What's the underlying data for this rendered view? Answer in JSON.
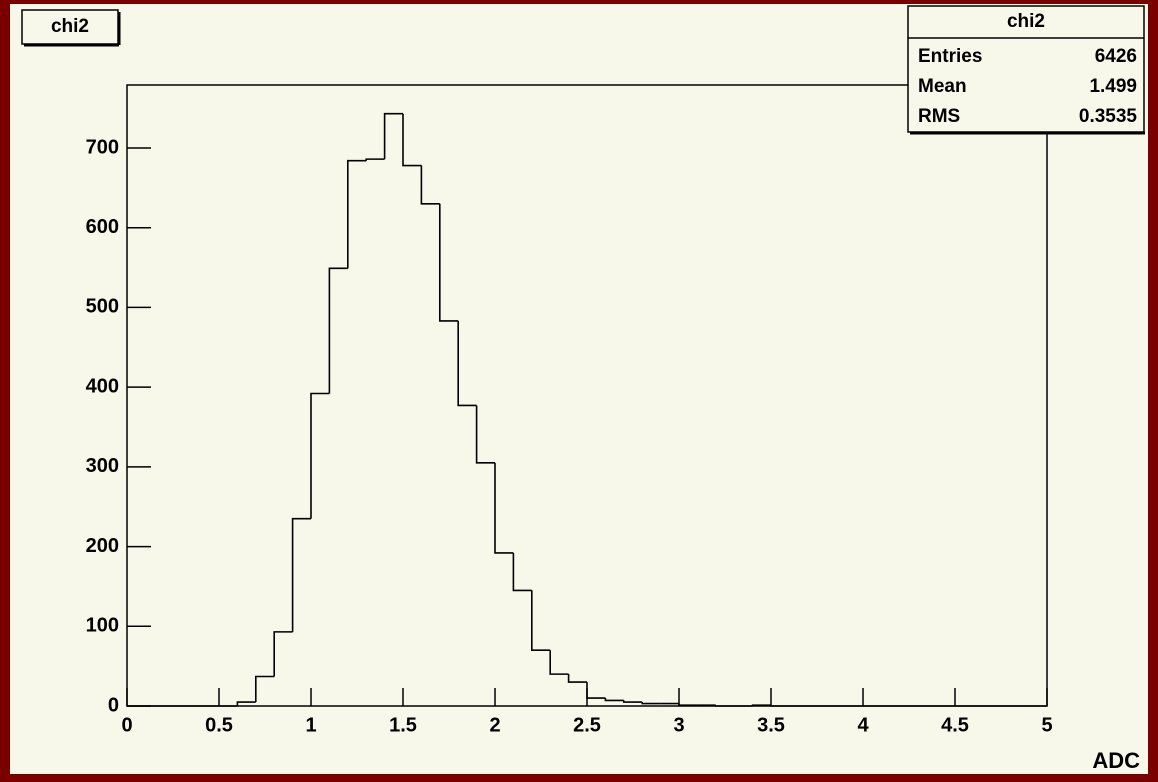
{
  "chart_data": {
    "type": "histogram",
    "title": "chi2",
    "x_label": "ADC",
    "bins": [
      0,
      0.1,
      0.2,
      0.3,
      0.4,
      0.5,
      0.6,
      0.7,
      0.8,
      0.9,
      1,
      1.1,
      1.2,
      1.3,
      1.4,
      1.5,
      1.6,
      1.7,
      1.8,
      1.9,
      2,
      2.1,
      2.2,
      2.3,
      2.4,
      2.5,
      2.6,
      2.7,
      2.8,
      2.9,
      3,
      3.1,
      3.2,
      3.3,
      3.4,
      3.5,
      3.6,
      3.7,
      3.8,
      3.9,
      4,
      4.1,
      4.2,
      4.3,
      4.4,
      4.5,
      4.6,
      4.7,
      4.8,
      4.9,
      5
    ],
    "values": [
      0,
      0,
      0,
      0,
      0,
      0,
      5,
      37,
      93,
      235,
      392,
      549,
      684,
      686,
      743,
      678,
      630,
      483,
      377,
      305,
      192,
      145,
      70,
      40,
      30,
      10,
      7,
      5,
      3,
      3,
      1,
      1,
      0,
      0,
      1,
      0,
      0,
      0,
      0,
      0,
      0,
      0,
      0,
      0,
      0,
      0,
      0,
      0,
      0,
      0
    ],
    "color": "#000000",
    "xlim": [
      0,
      5
    ],
    "xticks": [
      0,
      0.5,
      1,
      1.5,
      2,
      2.5,
      3,
      3.5,
      4,
      4.5,
      5
    ],
    "ylim": [
      0,
      779
    ],
    "yticks": [
      0,
      100,
      200,
      300,
      400,
      500,
      600,
      700
    ],
    "stats": {
      "title": "chi2",
      "rows": [
        [
          "Entries",
          "6426"
        ],
        [
          "Mean",
          "1.499"
        ],
        [
          "RMS",
          "0.3535"
        ]
      ]
    }
  }
}
